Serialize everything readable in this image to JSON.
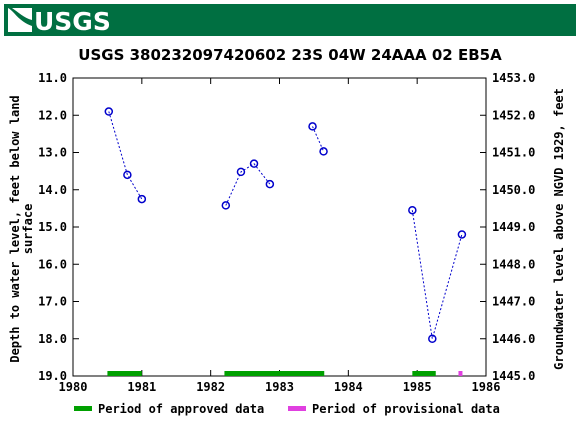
{
  "header": {
    "logo_text": "USGS",
    "bar_color": "#006f41"
  },
  "chart_data": {
    "type": "scatter",
    "title": "USGS 380232097420602 23S 04W 24AAA 02  EB5A",
    "ylabel_left_lines": [
      "Depth to water level, feet below land",
      "surface"
    ],
    "ylabel_right": "Groundwater level above NGVD 1929, feet",
    "x_ticks": [
      "1980",
      "1981",
      "1982",
      "1983",
      "1984",
      "1985",
      "1986"
    ],
    "y_left_ticks": [
      "11.0",
      "12.0",
      "13.0",
      "14.0",
      "15.0",
      "16.0",
      "17.0",
      "18.0",
      "19.0"
    ],
    "y_right_ticks": [
      "1453.0",
      "1452.0",
      "1451.0",
      "1450.0",
      "1449.0",
      "1448.0",
      "1447.0",
      "1446.0",
      "1445.0"
    ],
    "xlim": [
      1980,
      1986
    ],
    "ylim_left": [
      11,
      19
    ],
    "ylim_right": [
      1453,
      1445
    ],
    "y_left_reversed": true,
    "grid": false,
    "series": [
      {
        "style": "dashed-line-with-circles",
        "color": "#0000cc",
        "segments": [
          [
            [
              1980.52,
              11.9
            ],
            [
              1980.79,
              13.6
            ],
            [
              1981.0,
              14.25
            ]
          ],
          [
            [
              1982.22,
              14.42
            ],
            [
              1982.44,
              13.52
            ],
            [
              1982.63,
              13.3
            ],
            [
              1982.86,
              13.85
            ]
          ],
          [
            [
              1983.48,
              12.3
            ],
            [
              1983.64,
              12.97
            ]
          ],
          [
            [
              1984.93,
              14.55
            ],
            [
              1985.22,
              18.0
            ],
            [
              1985.65,
              15.2
            ]
          ]
        ]
      }
    ],
    "approved_periods": [
      [
        1980.5,
        1981.0
      ],
      [
        1982.2,
        1983.65
      ],
      [
        1984.93,
        1985.27
      ]
    ],
    "provisional_periods": [
      [
        1985.6,
        1985.65
      ]
    ],
    "approved_color": "#00a000",
    "provisional_color": "#e040e0",
    "legend": [
      {
        "label": "Period of approved data",
        "color": "#00a000"
      },
      {
        "label": "Period of provisional data",
        "color": "#e040e0"
      }
    ],
    "legend_position": "bottom"
  }
}
